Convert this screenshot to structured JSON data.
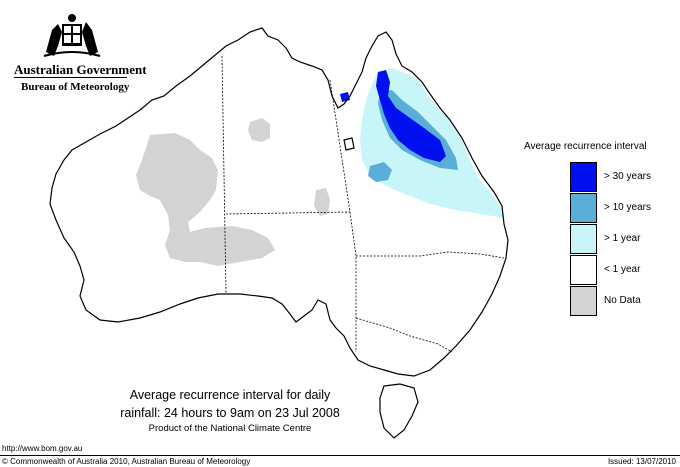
{
  "header": {
    "government": "Australian Government",
    "agency": "Bureau of Meteorology"
  },
  "map": {
    "region": "Australia",
    "colors": {
      "gt30": "#0010ee",
      "gt10": "#5aaed8",
      "gt1": "#c8f5f8",
      "lt1": "#ffffff",
      "nodata": "#d3d3d3",
      "outline": "#000000"
    }
  },
  "legend": {
    "title": "Average recurrence interval",
    "items": [
      {
        "label": "> 30 years",
        "color": "#0010ee"
      },
      {
        "label": "> 10 years",
        "color": "#5aaed8"
      },
      {
        "label": "> 1 year",
        "color": "#c8f5f8"
      },
      {
        "label": "< 1 year",
        "color": "#ffffff"
      },
      {
        "label": "No Data",
        "color": "#d3d3d3"
      }
    ]
  },
  "caption": {
    "line1": "Average recurrence interval for daily",
    "line2": "rainfall: 24 hours to 9am on 23 Jul 2008",
    "line3": "Product of the National Climate Centre"
  },
  "footer": {
    "url": "http://www.bom.gov.au",
    "copyright": "© Commonwealth of Australia 2010, Australian Bureau of Meteorology",
    "issued": "Issued: 13/07/2010"
  }
}
